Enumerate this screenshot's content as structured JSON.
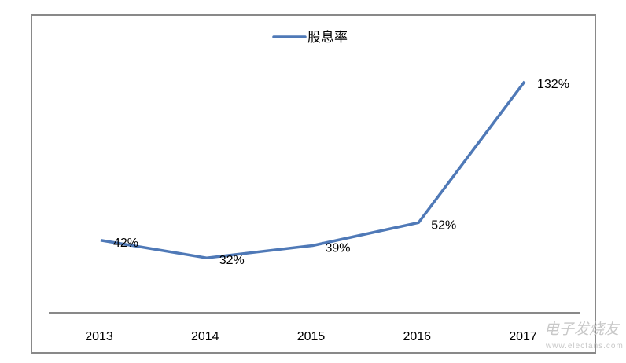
{
  "chart_data": {
    "type": "line",
    "categories": [
      "2013",
      "2014",
      "2015",
      "2016",
      "2017"
    ],
    "series": [
      {
        "name": "股息率",
        "values": [
          42,
          32,
          39,
          52,
          132
        ],
        "color": "#4f79b7"
      }
    ],
    "data_labels": [
      "42%",
      "32%",
      "39%",
      "52%",
      "132%"
    ],
    "ylim": [
      0,
      140
    ],
    "grid": false,
    "legend": "top-center",
    "y_axis_shown": false
  },
  "watermark": {
    "text": "电子发烧友",
    "url_text": "www.elecfans.com"
  }
}
